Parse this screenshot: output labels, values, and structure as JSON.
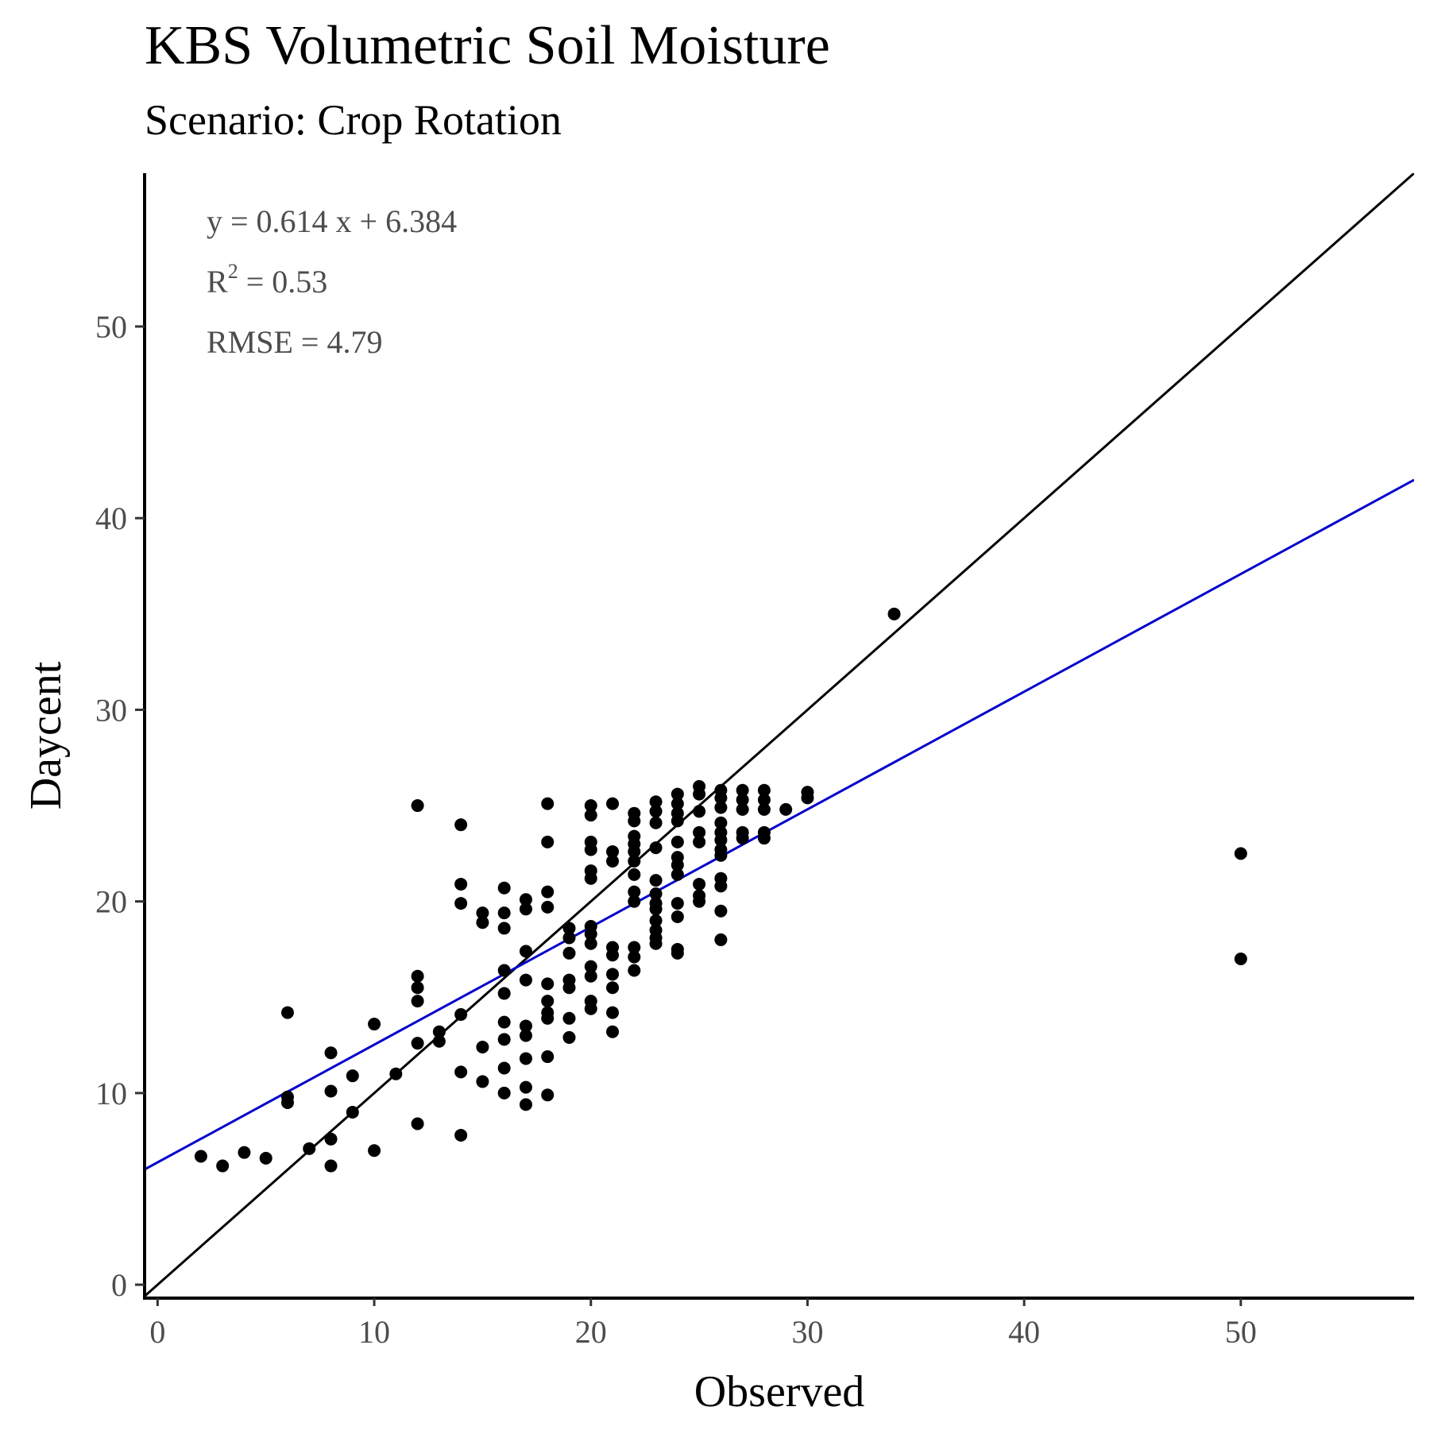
{
  "title": "KBS Volumetric Soil Moisture",
  "subtitle": "Scenario: Crop Rotation",
  "chart_data": {
    "type": "scatter",
    "xlabel": "Observed",
    "ylabel": "Daycent",
    "xlim": [
      -0.6,
      58
    ],
    "ylim": [
      -0.7,
      58
    ],
    "xticks": [
      0,
      10,
      20,
      30,
      40,
      50
    ],
    "yticks": [
      0,
      10,
      20,
      30,
      40,
      50
    ],
    "grid": false,
    "annotations": {
      "equation": "y = 0.614 x +  6.384",
      "r2_prefix": "R",
      "r2_sup": "2",
      "r2_value": " = 0.53",
      "rmse": "RMSE = 4.79"
    },
    "lines": [
      {
        "role": "one-to-one",
        "slope": 1,
        "intercept": 0,
        "color": "#000000"
      },
      {
        "role": "regression",
        "slope": 0.614,
        "intercept": 6.384,
        "color": "#0000cc"
      }
    ],
    "points": [
      [
        2,
        6.7
      ],
      [
        3,
        6.2
      ],
      [
        4,
        6.9
      ],
      [
        5,
        6.6
      ],
      [
        6,
        14.2
      ],
      [
        6,
        9.8
      ],
      [
        6,
        9.5
      ],
      [
        7,
        7.1
      ],
      [
        8,
        12.1
      ],
      [
        8,
        10.1
      ],
      [
        8,
        7.6
      ],
      [
        8,
        6.2
      ],
      [
        9,
        10.9
      ],
      [
        9,
        9.0
      ],
      [
        10,
        13.6
      ],
      [
        10,
        7.0
      ],
      [
        11,
        11.0
      ],
      [
        12,
        25.0
      ],
      [
        12,
        16.1
      ],
      [
        12,
        15.5
      ],
      [
        12,
        14.8
      ],
      [
        12,
        12.6
      ],
      [
        12,
        8.4
      ],
      [
        13,
        13.2
      ],
      [
        13,
        12.7
      ],
      [
        14,
        24.0
      ],
      [
        14,
        20.9
      ],
      [
        14,
        19.9
      ],
      [
        14,
        14.1
      ],
      [
        14,
        11.1
      ],
      [
        14,
        7.8
      ],
      [
        15,
        19.4
      ],
      [
        15,
        18.9
      ],
      [
        15,
        12.4
      ],
      [
        15,
        10.6
      ],
      [
        16,
        20.7
      ],
      [
        16,
        19.4
      ],
      [
        16,
        18.6
      ],
      [
        16,
        16.4
      ],
      [
        16,
        15.2
      ],
      [
        16,
        13.7
      ],
      [
        16,
        12.8
      ],
      [
        16,
        11.3
      ],
      [
        16,
        10.0
      ],
      [
        17,
        20.1
      ],
      [
        17,
        19.6
      ],
      [
        17,
        17.4
      ],
      [
        17,
        15.9
      ],
      [
        17,
        13.5
      ],
      [
        17,
        13.0
      ],
      [
        17,
        11.8
      ],
      [
        17,
        10.3
      ],
      [
        17,
        9.4
      ],
      [
        18,
        25.1
      ],
      [
        18,
        23.1
      ],
      [
        18,
        20.5
      ],
      [
        18,
        19.7
      ],
      [
        18,
        15.7
      ],
      [
        18,
        14.8
      ],
      [
        18,
        14.2
      ],
      [
        18,
        13.9
      ],
      [
        18,
        11.9
      ],
      [
        18,
        9.9
      ],
      [
        19,
        18.6
      ],
      [
        19,
        18.1
      ],
      [
        19,
        17.3
      ],
      [
        19,
        15.9
      ],
      [
        19,
        15.5
      ],
      [
        19,
        13.9
      ],
      [
        19,
        12.9
      ],
      [
        20,
        25.0
      ],
      [
        20,
        24.5
      ],
      [
        20,
        23.1
      ],
      [
        20,
        22.7
      ],
      [
        20,
        21.6
      ],
      [
        20,
        21.2
      ],
      [
        20,
        18.7
      ],
      [
        20,
        18.3
      ],
      [
        20,
        17.8
      ],
      [
        20,
        16.6
      ],
      [
        20,
        16.1
      ],
      [
        20,
        14.8
      ],
      [
        20,
        14.4
      ],
      [
        21,
        25.1
      ],
      [
        21,
        22.6
      ],
      [
        21,
        22.1
      ],
      [
        21,
        17.6
      ],
      [
        21,
        17.2
      ],
      [
        21,
        16.2
      ],
      [
        21,
        15.5
      ],
      [
        21,
        14.2
      ],
      [
        21,
        13.2
      ],
      [
        22,
        24.6
      ],
      [
        22,
        24.2
      ],
      [
        22,
        23.4
      ],
      [
        22,
        23.0
      ],
      [
        22,
        22.6
      ],
      [
        22,
        22.1
      ],
      [
        22,
        21.4
      ],
      [
        22,
        20.5
      ],
      [
        22,
        20.0
      ],
      [
        22,
        17.6
      ],
      [
        22,
        17.1
      ],
      [
        22,
        16.4
      ],
      [
        23,
        25.2
      ],
      [
        23,
        24.7
      ],
      [
        23,
        24.1
      ],
      [
        23,
        22.8
      ],
      [
        23,
        21.1
      ],
      [
        23,
        20.4
      ],
      [
        23,
        19.9
      ],
      [
        23,
        19.6
      ],
      [
        23,
        19.0
      ],
      [
        23,
        18.5
      ],
      [
        23,
        18.1
      ],
      [
        23,
        17.8
      ],
      [
        24,
        25.6
      ],
      [
        24,
        25.1
      ],
      [
        24,
        24.6
      ],
      [
        24,
        24.2
      ],
      [
        24,
        23.1
      ],
      [
        24,
        22.3
      ],
      [
        24,
        21.9
      ],
      [
        24,
        21.4
      ],
      [
        24,
        19.9
      ],
      [
        24,
        19.2
      ],
      [
        24,
        17.5
      ],
      [
        24,
        17.3
      ],
      [
        25,
        26.0
      ],
      [
        25,
        25.6
      ],
      [
        25,
        24.7
      ],
      [
        25,
        23.6
      ],
      [
        25,
        23.1
      ],
      [
        25,
        20.9
      ],
      [
        25,
        20.3
      ],
      [
        25,
        20.0
      ],
      [
        26,
        25.8
      ],
      [
        26,
        25.4
      ],
      [
        26,
        24.9
      ],
      [
        26,
        24.1
      ],
      [
        26,
        23.6
      ],
      [
        26,
        23.2
      ],
      [
        26,
        22.7
      ],
      [
        26,
        22.4
      ],
      [
        26,
        21.2
      ],
      [
        26,
        20.8
      ],
      [
        26,
        19.5
      ],
      [
        26,
        18.0
      ],
      [
        27,
        25.8
      ],
      [
        27,
        25.3
      ],
      [
        27,
        24.8
      ],
      [
        27,
        23.6
      ],
      [
        27,
        23.3
      ],
      [
        28,
        25.8
      ],
      [
        28,
        25.3
      ],
      [
        28,
        24.8
      ],
      [
        28,
        23.6
      ],
      [
        28,
        23.3
      ],
      [
        29,
        24.8
      ],
      [
        30,
        25.7
      ],
      [
        30,
        25.4
      ],
      [
        34,
        35.0
      ],
      [
        50,
        22.5
      ],
      [
        50,
        17.0
      ]
    ]
  }
}
